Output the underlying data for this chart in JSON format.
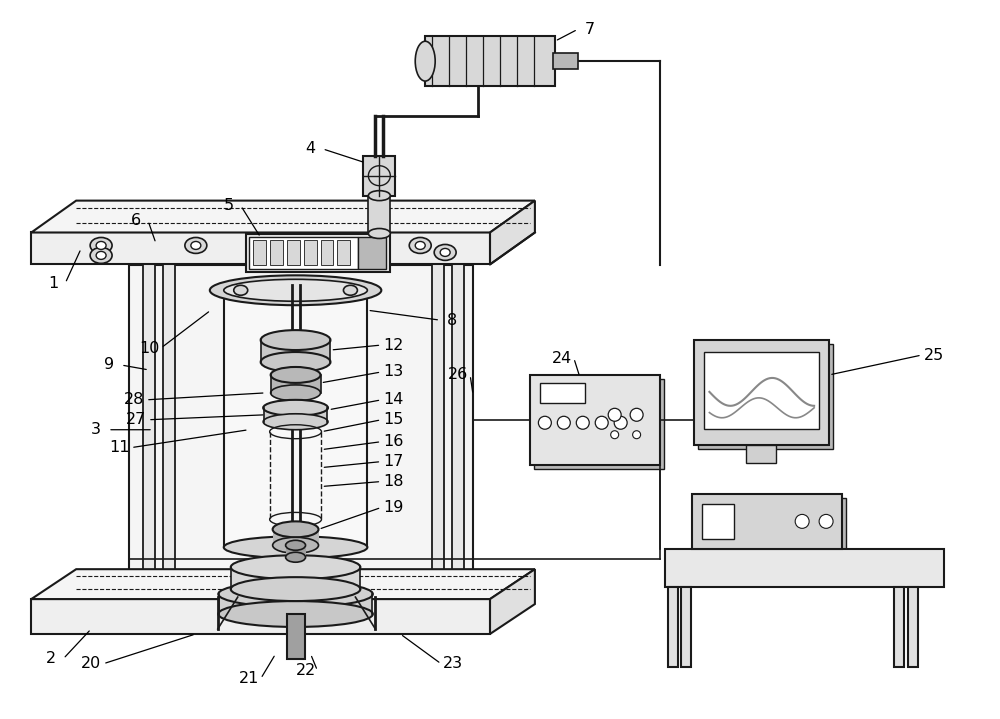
{
  "bg": "#ffffff",
  "lc": "#1a1a1a",
  "gc": "#b8b8b8",
  "lgc": "#d8d8d8",
  "dgc": "#888888",
  "fig_w": 10.0,
  "fig_h": 7.19,
  "dpi": 100
}
